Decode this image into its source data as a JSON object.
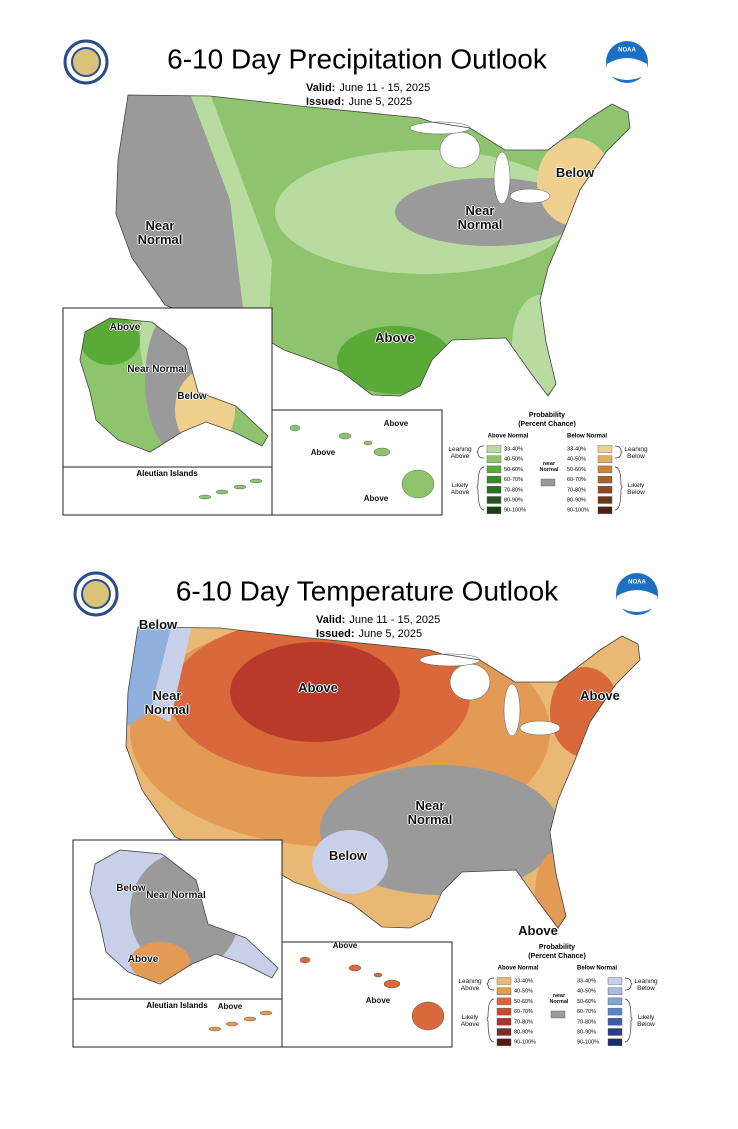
{
  "maps": [
    {
      "title": "6-10 Day Precipitation Outlook",
      "valid_label": "Valid:",
      "valid": "June 11 - 15, 2025",
      "issued_label": "Issued:",
      "issued": "June 5, 2025",
      "logo_text": "NOAA",
      "map_labels": [
        "Near Normal",
        "Near Normal",
        "Below",
        "Above"
      ],
      "alaska_labels": [
        "Above",
        "Near Normal",
        "Below"
      ],
      "aleutian_title": "Aleutian Islands",
      "aleutian_labels": [],
      "hawaii_labels": [
        "Above",
        "Above",
        "Above"
      ],
      "legend": {
        "title": "Probability",
        "subtitle": "(Percent Chance)",
        "above_heading": "Above Normal",
        "below_heading": "Below Normal",
        "near_label": "Near Normal",
        "leaning_above": "Leaning Above",
        "likely_above": "Likely Above",
        "leaning_below": "Leaning Below",
        "likely_below": "Likely Below",
        "classes": [
          "33-40%",
          "40-50%",
          "50-60%",
          "60-70%",
          "70-80%",
          "80-90%",
          "90-100%"
        ],
        "above_colors": [
          "#b8dca0",
          "#8fc46f",
          "#5aaa3a",
          "#3d8a2a",
          "#2e6e22",
          "#24561b",
          "#1a3f13"
        ],
        "below_colors": [
          "#f0d08e",
          "#e2b060",
          "#cc8040",
          "#a8602e",
          "#8a4a22",
          "#6a3618",
          "#4a2410"
        ],
        "near_color": "#9a9a9a"
      }
    },
    {
      "title": "6-10 Day Temperature Outlook",
      "valid_label": "Valid:",
      "valid": "June 11 - 15, 2025",
      "issued_label": "Issued:",
      "issued": "June 5, 2025",
      "logo_text": "NOAA",
      "map_labels": [
        "Below",
        "Near Normal",
        "Above",
        "Above",
        "Near Normal",
        "Below",
        "Above"
      ],
      "alaska_labels": [
        "Below",
        "Near Normal",
        "Above"
      ],
      "aleutian_title": "Aleutian Islands",
      "aleutian_labels": [
        "Above"
      ],
      "hawaii_labels": [
        "Above",
        "Above"
      ],
      "legend": {
        "title": "Probability",
        "subtitle": "(Percent Chance)",
        "above_heading": "Above Normal",
        "below_heading": "Below Normal",
        "near_label": "Near Normal",
        "leaning_above": "Leaning Above",
        "likely_above": "Likely Above",
        "leaning_below": "Leaning Below",
        "likely_below": "Likely Below",
        "classes": [
          "33-40%",
          "40-50%",
          "50-60%",
          "60-70%",
          "70-80%",
          "80-90%",
          "90-100%"
        ],
        "above_colors": [
          "#e9b874",
          "#e29a55",
          "#d9693a",
          "#c94a2f",
          "#a8362a",
          "#7d2a22",
          "#561b16"
        ],
        "below_colors": [
          "#c8cfe8",
          "#a9b9e0",
          "#7ea6da",
          "#5a86c8",
          "#3a5ea8",
          "#243f85",
          "#1b2c66"
        ],
        "near_color": "#9a9a9a"
      }
    }
  ]
}
